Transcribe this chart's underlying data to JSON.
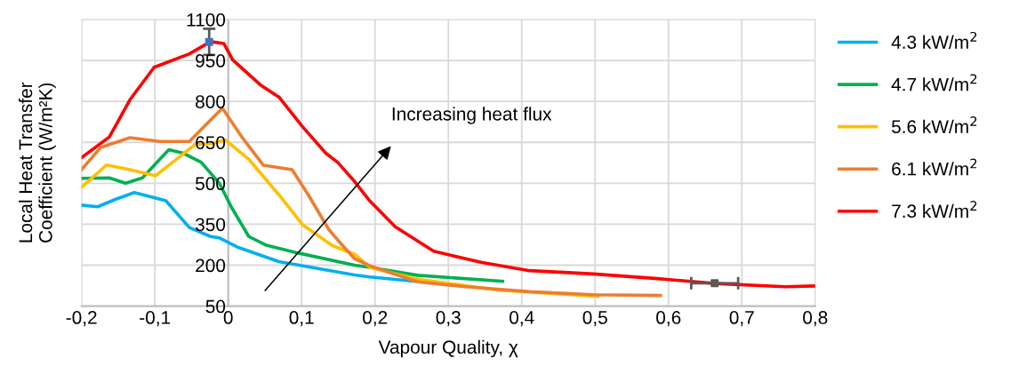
{
  "chart_data": {
    "type": "line",
    "xlabel": "Vapour Quality, χ",
    "ylabel": "Local Heat Transfer\nCoefficient (W/m²K)",
    "xlim": [
      -0.2,
      0.8
    ],
    "xticks": [
      {
        "value": -0.2,
        "label": "-0,2"
      },
      {
        "value": -0.1,
        "label": "-0,1"
      },
      0,
      {
        "value": 0.1,
        "label": "0,1"
      },
      {
        "value": 0.2,
        "label": "0,2"
      },
      {
        "value": 0.3,
        "label": "0,3"
      },
      {
        "value": 0.4,
        "label": "0,4"
      },
      {
        "value": 0.5,
        "label": "0,5"
      },
      {
        "value": 0.6,
        "label": "0,6"
      },
      {
        "value": 0.7,
        "label": "0,7"
      },
      {
        "value": 0.8,
        "label": "0,8"
      }
    ],
    "ylim": [
      50,
      1100
    ],
    "yticks": [
      50,
      200,
      350,
      500,
      650,
      800,
      950,
      1100
    ],
    "grid": true,
    "legend": "right",
    "line_style": "solid",
    "marker": "none",
    "annotations": [
      "Increasing heat flux"
    ],
    "series": [
      {
        "name": "4.3 kW/m$^{2}$",
        "color": "#00b0f0",
        "x": [
          -0.2,
          -0.178,
          -0.154,
          -0.128,
          -0.101,
          -0.085,
          -0.053,
          -0.024,
          -0.012,
          0.012,
          0.069,
          0.093,
          0.172,
          0.193,
          0.254
        ],
        "values": [
          420,
          414,
          441,
          466,
          447,
          436,
          338,
          305,
          300,
          267,
          213,
          202,
          164,
          157,
          141
        ]
      },
      {
        "name": "4.7 kW/m$^{2}$",
        "color": "#00b050",
        "x": [
          -0.2,
          -0.162,
          -0.14,
          -0.117,
          -0.081,
          -0.061,
          -0.037,
          -0.012,
          0.004,
          0.028,
          0.052,
          0.093,
          0.172,
          0.193,
          0.258,
          0.374
        ],
        "values": [
          518,
          520,
          500,
          520,
          623,
          610,
          577,
          500,
          414,
          305,
          273,
          246,
          200,
          192,
          163,
          141
        ]
      },
      {
        "name": "5.6 kW/m$^{2}$",
        "color": "#ffc000",
        "x": [
          -0.2,
          -0.166,
          -0.134,
          -0.099,
          -0.073,
          -0.045,
          -0.024,
          -0.004,
          0.028,
          0.069,
          0.101,
          0.141,
          0.172,
          0.193,
          0.258,
          0.367,
          0.504
        ],
        "values": [
          485,
          567,
          550,
          528,
          583,
          643,
          645,
          659,
          588,
          458,
          349,
          273,
          240,
          192,
          149,
          109,
          86
        ]
      },
      {
        "name": "6.1 kW/m$^{2}$",
        "color": "#ed7d31",
        "x": [
          -0.2,
          -0.174,
          -0.134,
          -0.093,
          -0.053,
          -0.033,
          -0.008,
          0.02,
          0.048,
          0.087,
          0.109,
          0.137,
          0.149,
          0.172,
          0.193,
          0.258,
          0.324,
          0.411,
          0.498,
          0.589
        ],
        "values": [
          550,
          631,
          667,
          653,
          653,
          708,
          775,
          664,
          566,
          550,
          458,
          331,
          293,
          224,
          198,
          139,
          121,
          103,
          92,
          89
        ]
      },
      {
        "name": "7.3 kW/m$^{2}$",
        "color": "#ff0000",
        "x": [
          -0.2,
          -0.162,
          -0.134,
          -0.101,
          -0.053,
          -0.024,
          -0.006,
          0.006,
          0.044,
          0.069,
          0.101,
          0.133,
          0.149,
          0.172,
          0.193,
          0.228,
          0.28,
          0.346,
          0.411,
          0.498,
          0.585,
          0.663,
          0.759,
          0.8
        ],
        "values": [
          594,
          670,
          806,
          925,
          974,
          1019,
          1012,
          952,
          860,
          816,
          708,
          610,
          577,
          507,
          435,
          340,
          251,
          210,
          180,
          168,
          151,
          133,
          121,
          124
        ]
      },
      {
        "type": "scatter",
        "color": "#4472c4",
        "marker": "square",
        "x": [
          -0.026
        ],
        "values": [
          1018
        ],
        "errors": [
          48
        ]
      },
      {
        "type": "scatter",
        "color": "#595959",
        "marker": "square",
        "x": [
          0.663
        ],
        "values": [
          134
        ],
        "xerrors": [
          0.032
        ]
      }
    ]
  }
}
